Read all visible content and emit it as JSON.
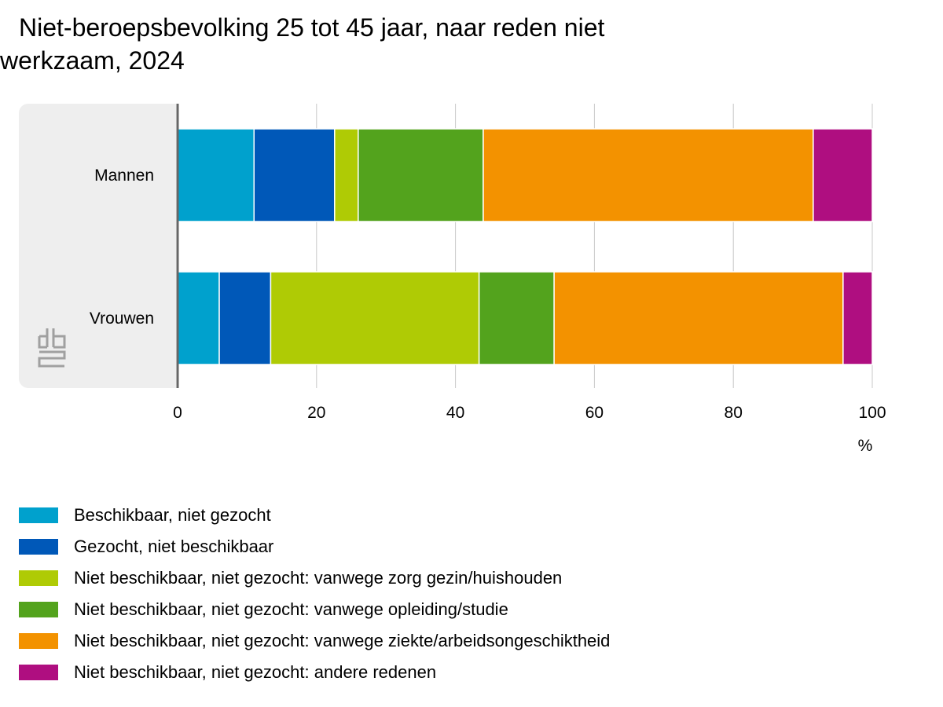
{
  "title_line1": "Niet-beroepsbevolking 25 tot 45 jaar, naar reden niet",
  "title_line2": "werkzaam, 2024",
  "chart_data": {
    "type": "bar",
    "orientation": "horizontal",
    "stacked": true,
    "categories": [
      "Mannen",
      "Vrouwen"
    ],
    "series": [
      {
        "name": "Beschikbaar, niet gezocht",
        "color": "#00a1cd",
        "values": [
          11.0,
          6.0
        ]
      },
      {
        "name": "Gezocht, niet beschikbaar",
        "color": "#0058b8",
        "values": [
          11.6,
          7.4
        ]
      },
      {
        "name": "Niet beschikbaar, niet gezocht: vanwege zorg gezin/huishouden",
        "color": "#afcb05",
        "values": [
          3.4,
          30.0
        ]
      },
      {
        "name": "Niet beschikbaar, niet gezocht: vanwege opleiding/studie",
        "color": "#53a31d",
        "values": [
          18.0,
          10.8
        ]
      },
      {
        "name": "Niet beschikbaar, niet gezocht: vanwege ziekte/arbeidsongeschiktheid",
        "color": "#f39200",
        "values": [
          47.5,
          41.6
        ]
      },
      {
        "name": "Niet beschikbaar, niet gezocht: andere redenen",
        "color": "#af0e80",
        "values": [
          8.5,
          4.2
        ]
      }
    ],
    "xlim": [
      0,
      100
    ],
    "xticks": [
      "0",
      "20",
      "40",
      "60",
      "80",
      "100"
    ],
    "xunit": "%",
    "grid": true,
    "legend_position": "bottom"
  }
}
